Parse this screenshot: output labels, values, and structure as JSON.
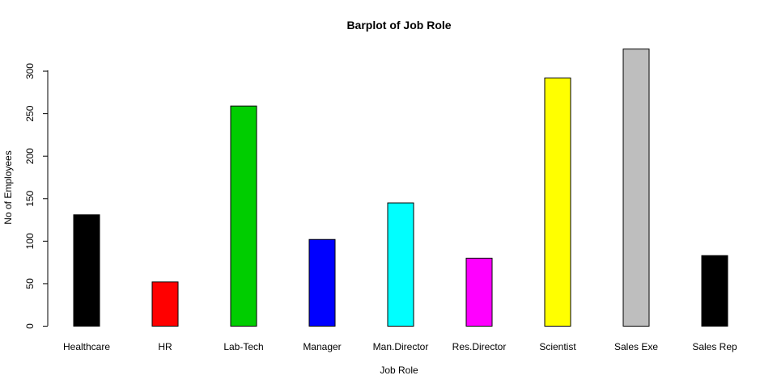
{
  "chart_data": {
    "type": "bar",
    "title": "Barplot of Job Role",
    "xlabel": "Job Role",
    "ylabel": "No of Employees",
    "categories": [
      "Healthcare",
      "HR",
      "Lab-Tech",
      "Manager",
      "Man.Director",
      "Res.Director",
      "Scientist",
      "Sales Exe",
      "Sales Rep"
    ],
    "values": [
      131,
      52,
      259,
      102,
      145,
      80,
      292,
      326,
      83
    ],
    "colors": [
      "#000000",
      "#ff0000",
      "#00cd00",
      "#0000ff",
      "#00ffff",
      "#ff00ff",
      "#ffff00",
      "#bebebe",
      "#000000"
    ],
    "yticks": [
      0,
      50,
      100,
      150,
      200,
      250,
      300
    ],
    "ylim": [
      0,
      326
    ],
    "grid": false,
    "legend": "none"
  }
}
